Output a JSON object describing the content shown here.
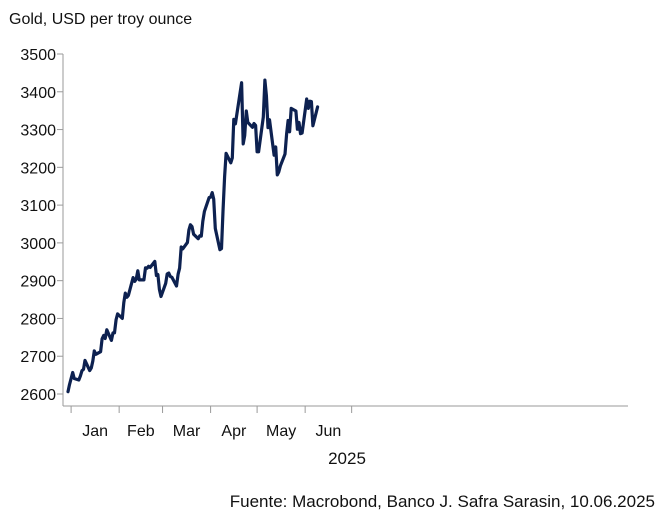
{
  "chart_data": {
    "type": "line",
    "title": "Gold, USD per troy ounce",
    "xlabel": "2025",
    "ylabel": "",
    "ylim": [
      2600,
      3500
    ],
    "yticks": [
      2600,
      2700,
      2800,
      2900,
      3000,
      3100,
      3200,
      3300,
      3400,
      3500
    ],
    "xticks": [
      "Jan",
      "Feb",
      "Mar",
      "Apr",
      "May",
      "Jun"
    ],
    "source": "Fuente: Macrobond, Banco J. Safra Sarasin, 10.06.2025",
    "series": [
      {
        "color": "#0d2150",
        "x": [
          "2024-12-30",
          "2024-12-31",
          "2025-01-02",
          "2025-01-03",
          "2025-01-06",
          "2025-01-07",
          "2025-01-08",
          "2025-01-09",
          "2025-01-10",
          "2025-01-13",
          "2025-01-14",
          "2025-01-15",
          "2025-01-16",
          "2025-01-17",
          "2025-01-20",
          "2025-01-21",
          "2025-01-22",
          "2025-01-23",
          "2025-01-24",
          "2025-01-27",
          "2025-01-28",
          "2025-01-29",
          "2025-01-30",
          "2025-01-31",
          "2025-02-03",
          "2025-02-04",
          "2025-02-05",
          "2025-02-06",
          "2025-02-07",
          "2025-02-10",
          "2025-02-11",
          "2025-02-12",
          "2025-02-13",
          "2025-02-14",
          "2025-02-17",
          "2025-02-18",
          "2025-02-19",
          "2025-02-20",
          "2025-02-21",
          "2025-02-24",
          "2025-02-25",
          "2025-02-26",
          "2025-02-27",
          "2025-02-28",
          "2025-03-03",
          "2025-03-04",
          "2025-03-05",
          "2025-03-06",
          "2025-03-07",
          "2025-03-10",
          "2025-03-11",
          "2025-03-12",
          "2025-03-13",
          "2025-03-14",
          "2025-03-17",
          "2025-03-18",
          "2025-03-19",
          "2025-03-20",
          "2025-03-21",
          "2025-03-24",
          "2025-03-25",
          "2025-03-26",
          "2025-03-27",
          "2025-03-28",
          "2025-03-31",
          "2025-04-01",
          "2025-04-02",
          "2025-04-03",
          "2025-04-04",
          "2025-04-07",
          "2025-04-08",
          "2025-04-09",
          "2025-04-10",
          "2025-04-11",
          "2025-04-14",
          "2025-04-15",
          "2025-04-16",
          "2025-04-17",
          "2025-04-21",
          "2025-04-22",
          "2025-04-23",
          "2025-04-24",
          "2025-04-25",
          "2025-04-28",
          "2025-04-29",
          "2025-04-30",
          "2025-05-01",
          "2025-05-02",
          "2025-05-05",
          "2025-05-06",
          "2025-05-07",
          "2025-05-08",
          "2025-05-09",
          "2025-05-12",
          "2025-05-13",
          "2025-05-14",
          "2025-05-15",
          "2025-05-16",
          "2025-05-19",
          "2025-05-20",
          "2025-05-21",
          "2025-05-22",
          "2025-05-23",
          "2025-05-26",
          "2025-05-27",
          "2025-05-28",
          "2025-05-29",
          "2025-05-30",
          "2025-06-02",
          "2025-06-03",
          "2025-06-04",
          "2025-06-05",
          "2025-06-06",
          "2025-06-09"
        ],
        "values": [
          2606,
          2625,
          2657,
          2641,
          2637,
          2648,
          2662,
          2665,
          2689,
          2662,
          2669,
          2687,
          2714,
          2705,
          2712,
          2746,
          2755,
          2747,
          2770,
          2742,
          2762,
          2762,
          2797,
          2812,
          2800,
          2842,
          2867,
          2856,
          2861,
          2908,
          2898,
          2904,
          2926,
          2902,
          2902,
          2934,
          2933,
          2938,
          2935,
          2951,
          2914,
          2916,
          2877,
          2858,
          2893,
          2918,
          2920,
          2911,
          2909,
          2886,
          2917,
          2933,
          2989,
          2984,
          3001,
          3034,
          3048,
          3043,
          3023,
          3011,
          3019,
          3018,
          3057,
          3083,
          3120,
          3121,
          3133,
          3116,
          3038,
          2982,
          2985,
          3084,
          3175,
          3237,
          3212,
          3225,
          3327,
          3315,
          3424,
          3262,
          3284,
          3349,
          3319,
          3306,
          3316,
          3311,
          3241,
          3241,
          3333,
          3431,
          3390,
          3305,
          3326,
          3232,
          3254,
          3180,
          3188,
          3204,
          3235,
          3288,
          3324,
          3294,
          3356,
          3349,
          3301,
          3319,
          3289,
          3291,
          3381,
          3356,
          3375,
          3374,
          3310,
          3360
        ]
      }
    ]
  }
}
